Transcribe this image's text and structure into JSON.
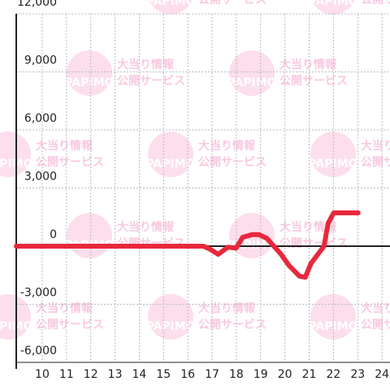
{
  "chart_data": {
    "type": "line",
    "x": [
      8.93,
      16.64,
      16.91,
      17.25,
      17.65,
      17.99,
      18.26,
      18.66,
      18.93,
      19.26,
      19.83,
      20.17,
      20.6,
      20.84,
      21.07,
      21.61,
      21.78,
      22.01,
      23.02
    ],
    "series": [
      {
        "color": "#e8283c",
        "values": [
          0,
          0,
          -150,
          -420,
          -50,
          -100,
          460,
          600,
          600,
          400,
          -400,
          -1000,
          -1550,
          -1600,
          -900,
          0,
          1180,
          1720,
          1720
        ]
      }
    ],
    "xlim": [
      8.93,
      24.33
    ],
    "xticks": [
      10,
      11,
      12,
      13,
      14,
      15,
      16,
      17,
      18,
      19,
      20,
      21,
      22,
      23,
      24
    ],
    "ylim": [
      -6000,
      12000
    ],
    "yticks": [
      {
        "value": -6000,
        "label": "-6,000"
      },
      {
        "value": -3000,
        "label": "-3,000"
      },
      0,
      {
        "value": 3000,
        "label": "3,000"
      },
      {
        "value": 6000,
        "label": "6,000"
      },
      {
        "value": 9000,
        "label": "9,000"
      },
      {
        "value": 12000,
        "label": "12,000"
      }
    ],
    "grid": true,
    "watermark": {
      "logo": "PAPIMO",
      "line1": "大当り情報",
      "line2": "公開サービス"
    }
  }
}
